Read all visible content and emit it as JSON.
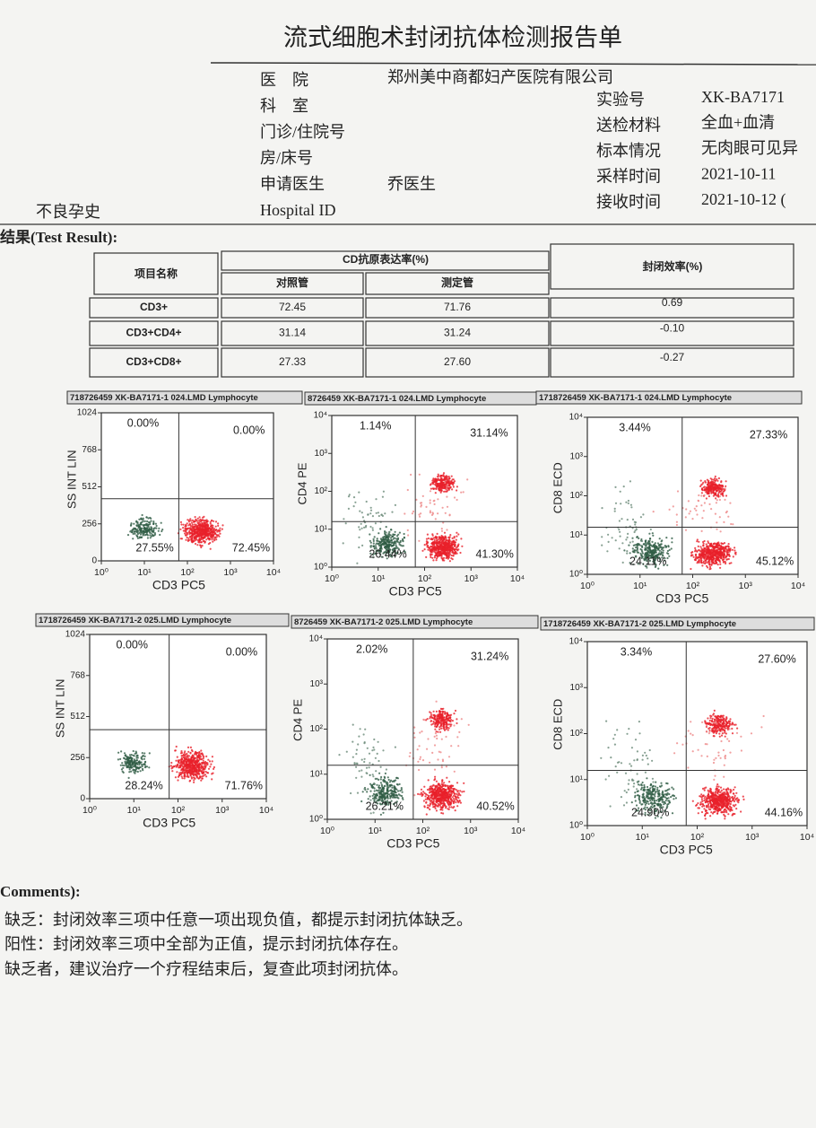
{
  "header": {
    "title": "流式细胞术封闭抗体检测报告单"
  },
  "info": {
    "left": [
      {
        "label": "医　院",
        "value": "郑州美中商都妇产医院有限公司"
      },
      {
        "label": "科　室",
        "value": ""
      },
      {
        "label": "门诊/住院号",
        "value": ""
      },
      {
        "label": "房/床号",
        "value": ""
      },
      {
        "label": "申请医生",
        "value": "乔医生"
      },
      {
        "label": "Hospital ID",
        "value": ""
      }
    ],
    "right": [
      {
        "label": "实验号",
        "value": "XK-BA7171"
      },
      {
        "label": "送检材料",
        "value": "全血+血清"
      },
      {
        "label": "标本情况",
        "value": "无肉眼可见异"
      },
      {
        "label": "采样时间",
        "value": "2021-10-11"
      },
      {
        "label": "接收时间",
        "value": "2021-10-12 ("
      }
    ],
    "history": "不良孕史"
  },
  "result_title": "结果(Test Result):",
  "table": {
    "col_name": "项目名称",
    "group": "CD抗原表达率(%)",
    "control": "对照管",
    "test": "测定管",
    "efficiency": "封闭效率(%)",
    "rows": [
      [
        "CD3+",
        "72.45",
        "71.76",
        "0.69"
      ],
      [
        "CD3+CD4+",
        "31.14",
        "31.24",
        "-0.10"
      ],
      [
        "CD3+CD8+",
        "27.33",
        "27.60",
        "-0.27"
      ]
    ]
  },
  "plots": [
    {
      "header": "718726459 XK-BA7171-1 024.LMD  Lymphocyte",
      "ylabel": "SS INT LIN",
      "xlabel": "CD3 PC5",
      "yticks": [
        "0",
        "256",
        "512",
        "768",
        "1024"
      ],
      "xticks": [
        "10⁰",
        "10¹",
        "10²",
        "10³",
        "10⁴"
      ],
      "quadrants": [
        "0.00%",
        "0.00%",
        "27.55%",
        "72.45%"
      ]
    },
    {
      "header": "8726459 XK-BA7171-1 024.LMD  Lymphocyte",
      "ylabel": "CD4 PE",
      "xlabel": "CD3 PC5",
      "yticks": [
        "10⁰",
        "10¹",
        "10²",
        "10³",
        "10⁴"
      ],
      "xticks": [
        "10⁰",
        "10¹",
        "10²",
        "10³",
        "10⁴"
      ],
      "quadrants": [
        "1.14%",
        "31.14%",
        "26.44%",
        "41.30%"
      ]
    },
    {
      "header": "1718726459 XK-BA7171-1 024.LMD  Lymphocyte",
      "ylabel": "CD8 ECD",
      "xlabel": "CD3 PC5",
      "yticks": [
        "10⁰",
        "10¹",
        "10²",
        "10³",
        "10⁴"
      ],
      "xticks": [
        "10⁰",
        "10¹",
        "10²",
        "10³",
        "10⁴"
      ],
      "quadrants": [
        "3.44%",
        "27.33%",
        "24.11%",
        "45.12%"
      ]
    },
    {
      "header": "1718726459 XK-BA7171-2 025.LMD  Lymphocyte",
      "ylabel": "SS INT LIN",
      "xlabel": "CD3 PC5",
      "yticks": [
        "0",
        "256",
        "512",
        "768",
        "1024"
      ],
      "xticks": [
        "10⁰",
        "10¹",
        "10²",
        "10³",
        "10⁴"
      ],
      "quadrants": [
        "0.00%",
        "0.00%",
        "28.24%",
        "71.76%"
      ]
    },
    {
      "header": "8726459 XK-BA7171-2 025.LMD  Lymphocyte",
      "ylabel": "CD4 PE",
      "xlabel": "CD3 PC5",
      "yticks": [
        "10⁰",
        "10¹",
        "10²",
        "10³",
        "10⁴"
      ],
      "xticks": [
        "10⁰",
        "10¹",
        "10²",
        "10³",
        "10⁴"
      ],
      "quadrants": [
        "2.02%",
        "31.24%",
        "26.21%",
        "40.52%"
      ]
    },
    {
      "header": "1718726459 XK-BA7171-2 025.LMD  Lymphocyte",
      "ylabel": "CD8 ECD",
      "xlabel": "CD3 PC5",
      "yticks": [
        "10⁰",
        "10¹",
        "10²",
        "10³",
        "10⁴"
      ],
      "xticks": [
        "10⁰",
        "10¹",
        "10²",
        "10³",
        "10⁴"
      ],
      "quadrants": [
        "3.34%",
        "27.60%",
        "24.90%",
        "44.16%"
      ]
    }
  ],
  "comments": {
    "title": "Comments):",
    "lines": [
      "缺乏：封闭效率三项中任意一项出现负值，都提示封闭抗体缺乏。",
      "阳性：封闭效率三项中全部为正值，提示封闭抗体存在。",
      "缺乏者，建议治疗一个疗程结束后，复查此项封闭抗体。"
    ]
  }
}
